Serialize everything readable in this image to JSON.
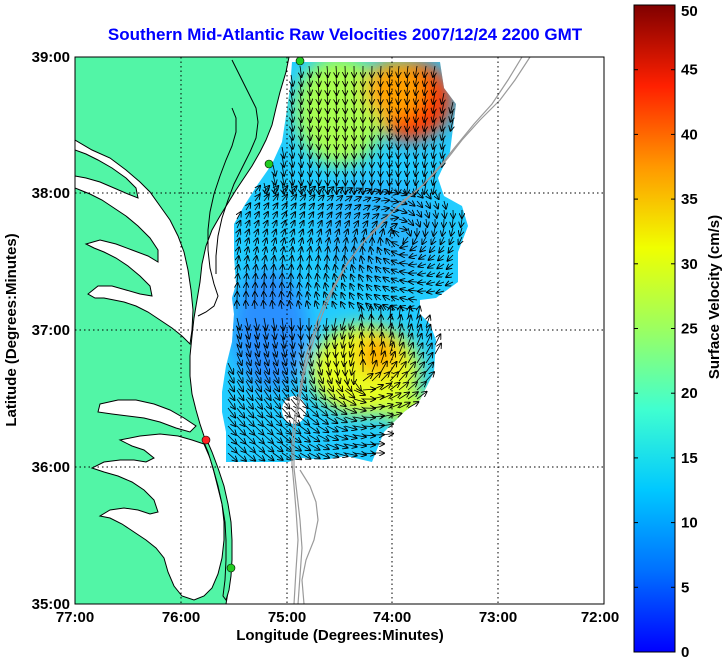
{
  "chart_data": {
    "type": "heatmap",
    "title": "Southern Mid-Atlantic Raw Velocities 2007/12/24 2200 GMT",
    "xlabel": "Longitude (Degrees:Minutes)",
    "ylabel": "Latitude (Degrees:Minutes)",
    "x_ticks": [
      "77:00",
      "76:00",
      "75:00",
      "74:00",
      "73:00",
      "72:00"
    ],
    "x_tick_values": [
      -77,
      -76,
      -75,
      -74,
      -73,
      -72
    ],
    "y_ticks": [
      "39:00",
      "38:00",
      "37:00",
      "36:00",
      "35:00"
    ],
    "y_tick_values": [
      39,
      38,
      37,
      36,
      35
    ],
    "xlim": [
      -77,
      -72
    ],
    "ylim": [
      35,
      39
    ],
    "grid": true,
    "colorbar": {
      "label": "Surface Velocity (cm/s)",
      "range": [
        0,
        50
      ],
      "ticks": [
        "0",
        "5",
        "10",
        "15",
        "20",
        "25",
        "30",
        "35",
        "40",
        "45",
        "50"
      ],
      "tick_values": [
        0,
        5,
        10,
        15,
        20,
        25,
        30,
        35,
        40,
        45,
        50
      ],
      "colormap": "jet"
    },
    "speed_regions": [
      {
        "lon": -74.0,
        "lat": 38.7,
        "speed_cm_s": 38
      },
      {
        "lon": -74.6,
        "lat": 38.5,
        "speed_cm_s": 24
      },
      {
        "lon": -74.3,
        "lat": 37.7,
        "speed_cm_s": 10
      },
      {
        "lon": -75.2,
        "lat": 37.5,
        "speed_cm_s": 9
      },
      {
        "lon": -74.3,
        "lat": 36.8,
        "speed_cm_s": 26
      },
      {
        "lon": -75.1,
        "lat": 36.5,
        "speed_cm_s": 10
      },
      {
        "lon": -74.0,
        "lat": 36.5,
        "speed_cm_s": 22
      }
    ]
  },
  "colors": {
    "land": "#52f5a6",
    "ocean": "#ffffff",
    "title": "#0000ff",
    "grid": "#000000",
    "bathymetry": "#9a9a9a",
    "site_active": "#22cc22",
    "site_inactive": "#ff2222"
  }
}
